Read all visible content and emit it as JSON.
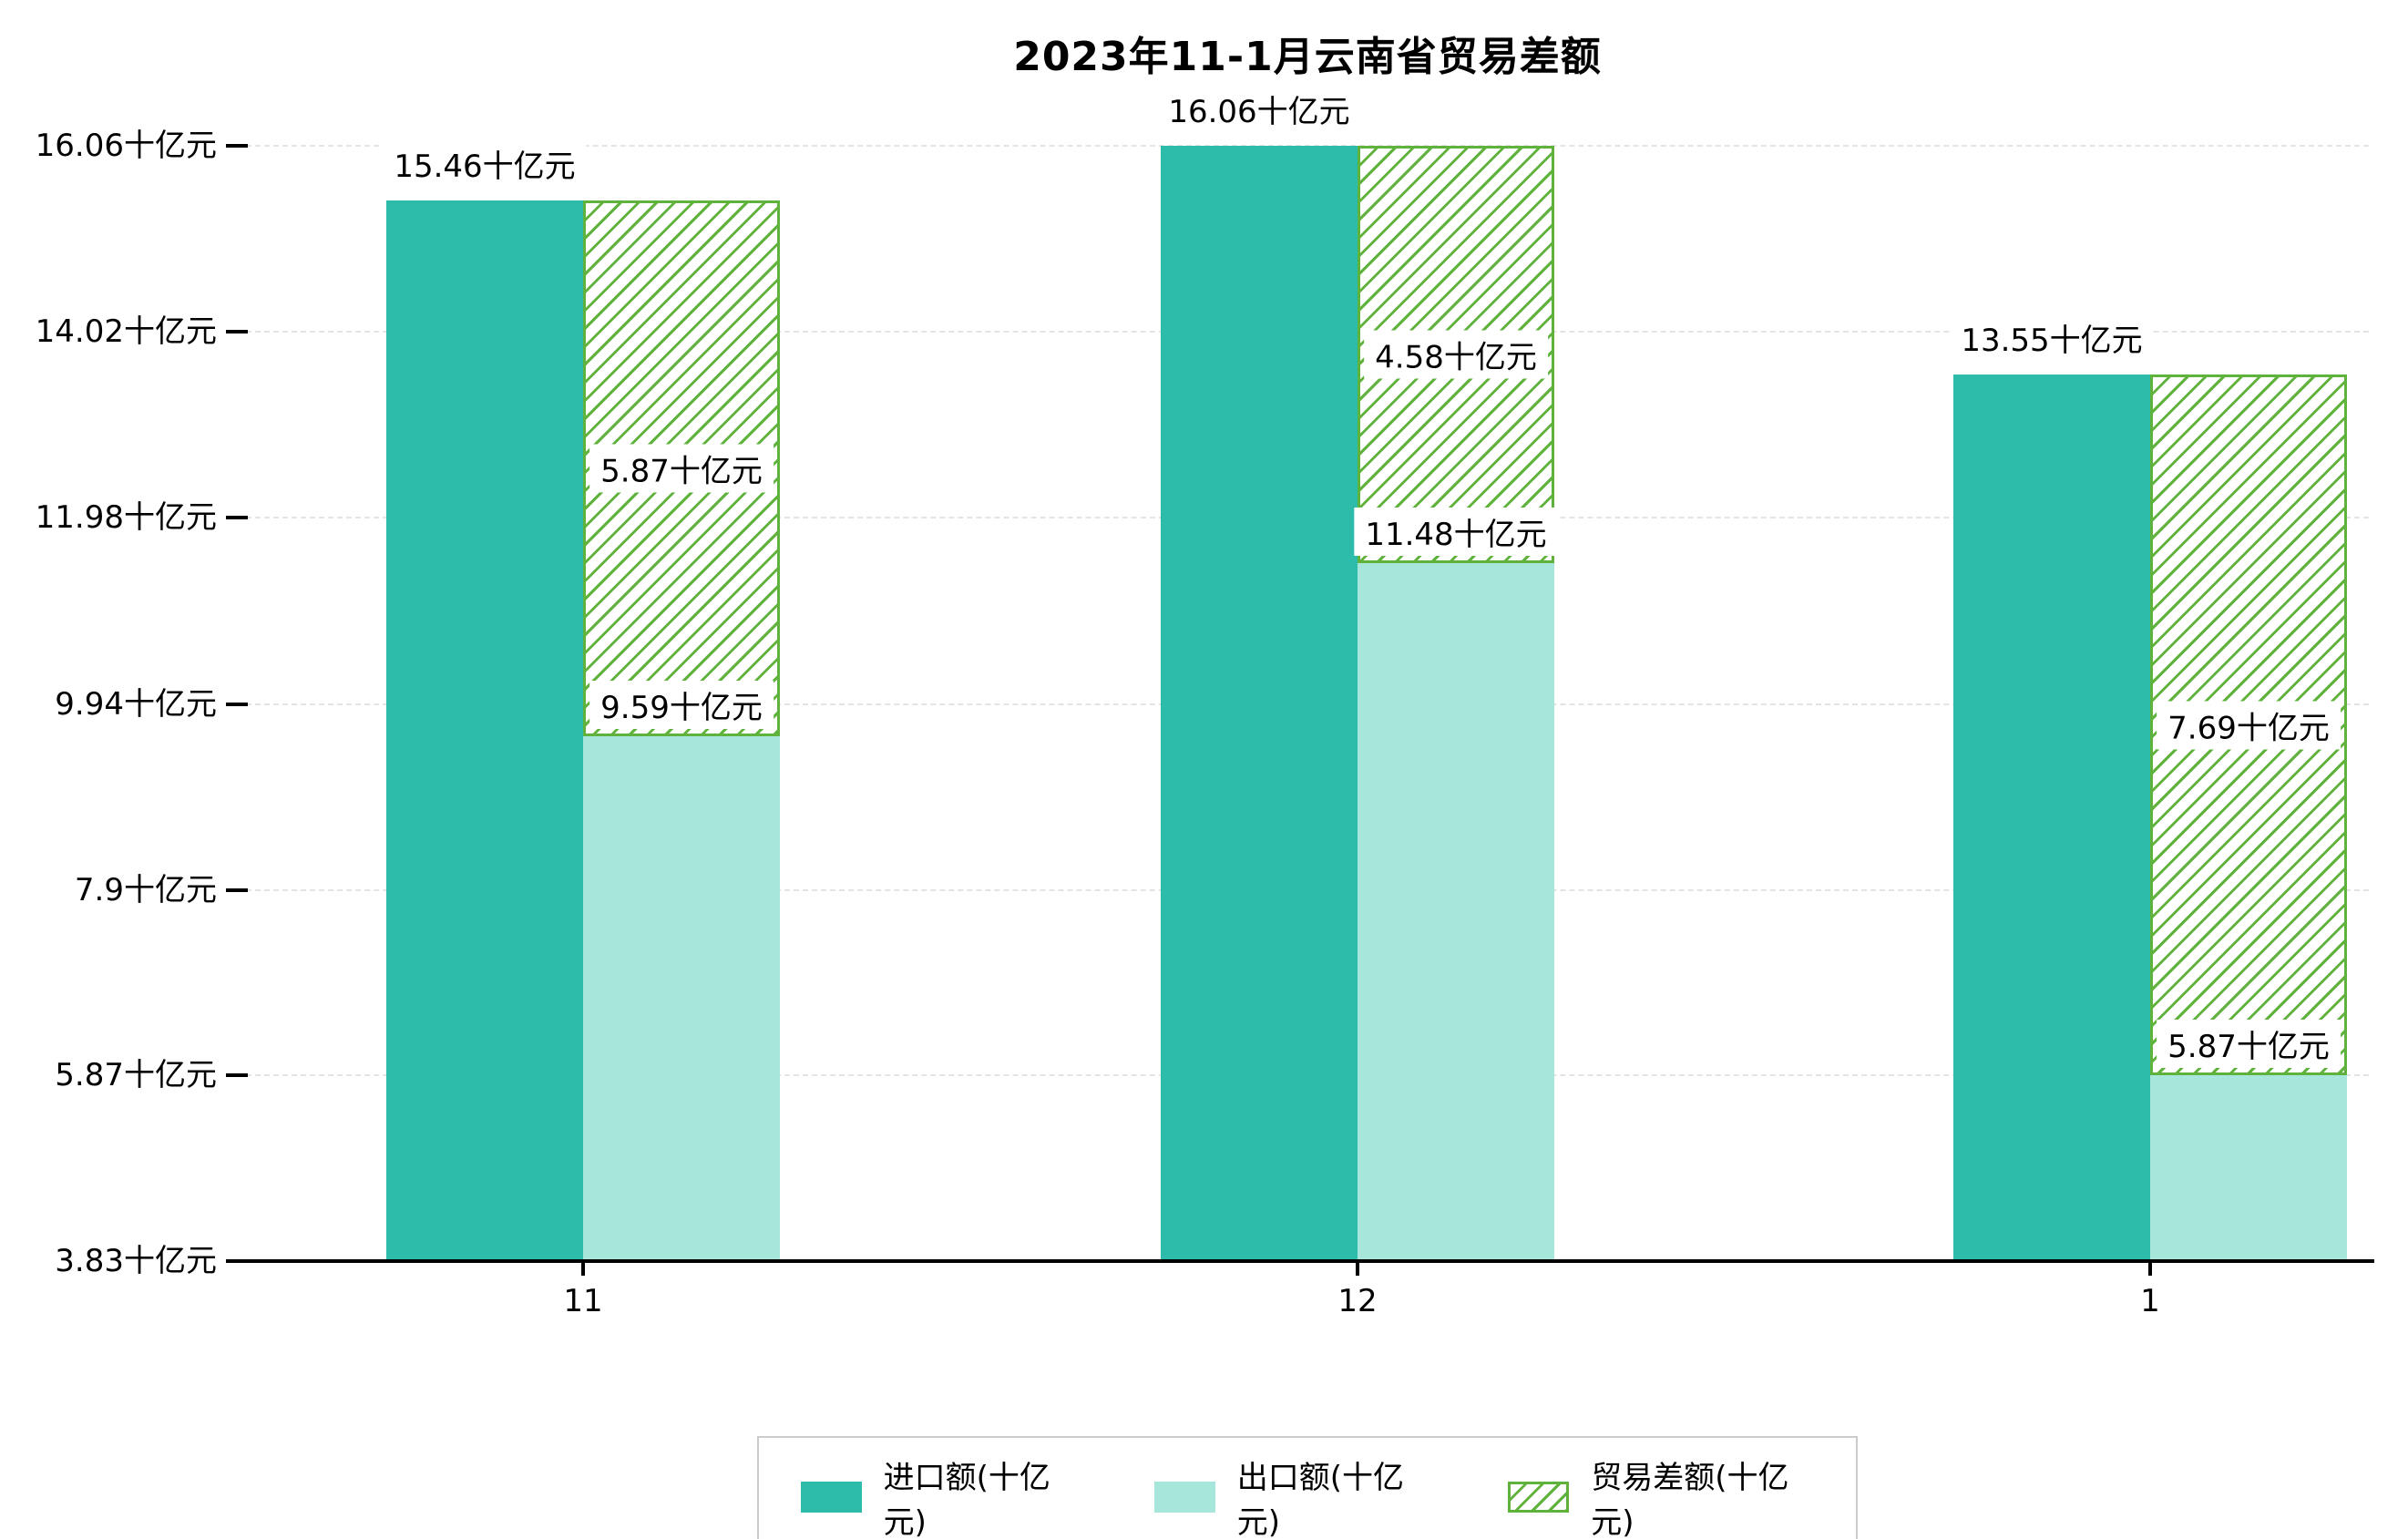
{
  "title": "2023年11-1月云南省贸易差额",
  "chart_data": {
    "type": "bar",
    "title": "2023年11-1月云南省贸易差额",
    "categories": [
      "11",
      "12",
      "1"
    ],
    "unit": "十亿元",
    "series": [
      {
        "name": "进口额(十亿元)",
        "values": [
          15.46,
          16.06,
          13.55
        ],
        "labels": [
          "15.46十亿元",
          "16.06十亿元",
          "13.55十亿元"
        ],
        "color": "#2ebcaa",
        "style": "solid"
      },
      {
        "name": "出口额(十亿元)",
        "values": [
          9.59,
          11.48,
          5.87
        ],
        "labels": [
          "9.59十亿元",
          "11.48十亿元",
          "5.87十亿元"
        ],
        "color": "#a7e6da",
        "style": "solid"
      },
      {
        "name": "贸易差额(十亿元)",
        "values": [
          5.87,
          4.58,
          7.69
        ],
        "labels": [
          "5.87十亿元",
          "4.58十亿元",
          "7.69十亿元"
        ],
        "color": "#5fb23c",
        "style": "hatch",
        "note": "floating hatched bar spanning from export level up to import level"
      }
    ],
    "y_axis": {
      "tick_labels": [
        "16.06十亿元",
        "14.02十亿元",
        "11.98十亿元",
        "9.94十亿元",
        "7.9十亿元",
        "5.87十亿元",
        "3.83十亿元"
      ],
      "tick_values": [
        16.06,
        14.02,
        11.98,
        9.94,
        7.9,
        5.87,
        3.83
      ],
      "min": 3.83,
      "max": 16.06
    },
    "ylim": [
      3.83,
      16.06
    ],
    "grid": "horizontal-dashed",
    "legend_position": "bottom-center"
  },
  "legend": {
    "items": [
      "进口额(十亿元)",
      "出口额(十亿元)",
      "贸易差额(十亿元)"
    ]
  }
}
